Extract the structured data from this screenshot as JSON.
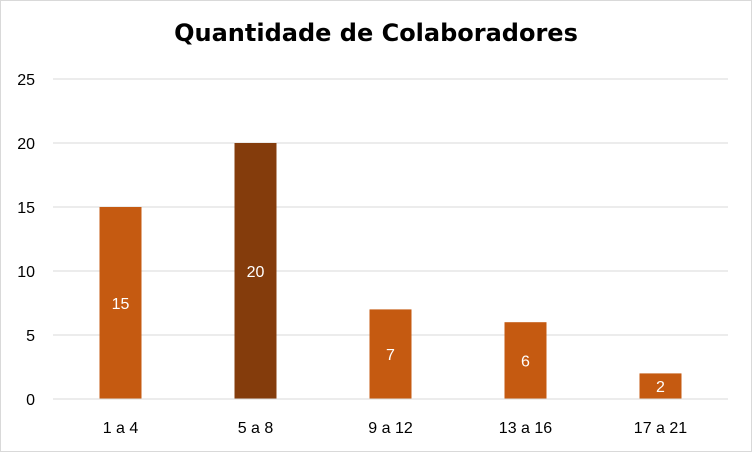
{
  "chart_data": {
    "type": "bar",
    "title": "Quantidade de Colaboradores",
    "categories": [
      "1 a 4",
      "5 a 8",
      "9 a 12",
      "13 a 16",
      "17 a 21"
    ],
    "values": [
      15,
      20,
      7,
      6,
      2
    ],
    "data_labels": [
      "15",
      "20",
      "7",
      "6",
      "2"
    ],
    "yticks": [
      0,
      5,
      10,
      15,
      20,
      25
    ],
    "ylim": [
      0,
      25
    ],
    "grid": true,
    "legend": "none",
    "bar_color": "#c55a11",
    "highlight_color": "#843c0c",
    "highlight_index": 1,
    "gridline_color": "#d9d9d9",
    "data_label_color": "#ffffff"
  }
}
